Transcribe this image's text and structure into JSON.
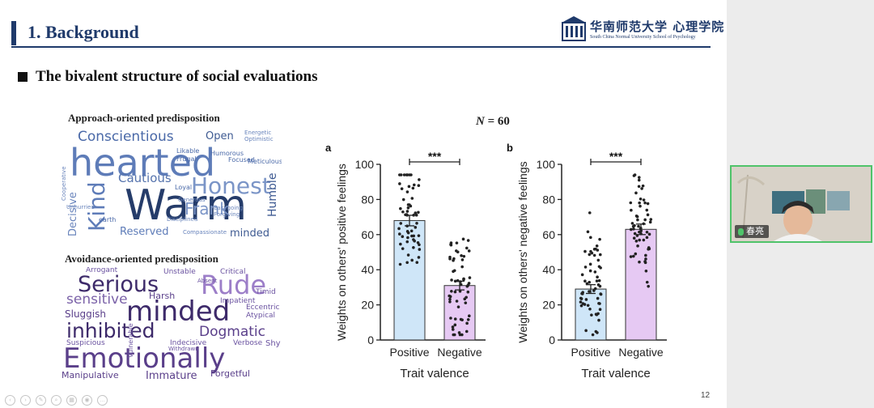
{
  "slide": {
    "section_title": "1. Background",
    "logo_text": "华南师范大学 心理学院",
    "logo_subtitle": "South China Normal University School of Psychology",
    "subtitle": "The bivalent structure of social evaluations",
    "page_number": "12",
    "n_label_prefix": "N",
    "n_label_value": "= 60"
  },
  "approach_cloud": {
    "label": "Approach-oriented predisposition",
    "words": [
      "hearted",
      "Warm",
      "Conscientious",
      "Honest",
      "Kind",
      "Frank",
      "Humble",
      "Decisive",
      "Cautious",
      "Reserved",
      "minded",
      "Open",
      "Energetic",
      "Optimistic",
      "Likable",
      "Frugal",
      "Humorous",
      "Loyal",
      "earth",
      "Meticulous",
      "Focused",
      "Generous",
      "Cooperative",
      "Unhurried",
      "Disciplined",
      "Forgiving",
      "Easygoing",
      "Compassionate"
    ]
  },
  "avoid_cloud": {
    "label": "Avoidance-oriented predisposition",
    "words": [
      "Serious",
      "Rude",
      "minded",
      "sensitive",
      "inhibited",
      "Dogmatic",
      "Emotionally",
      "Arrogant",
      "Unstable",
      "Critical",
      "Sluggish",
      "Harsh",
      "Timid",
      "Eccentric",
      "Atypical",
      "Impatient",
      "Suspicious",
      "Indecisive",
      "Verbose",
      "Shy",
      "Manipulative",
      "Immature",
      "Forgetful",
      "Vulnerable",
      "Absent",
      "Withdrawn"
    ]
  },
  "chart_data": [
    {
      "type": "bar",
      "panel_label": "a",
      "ylabel": "Weights on others' positive feelings",
      "xlabel": "Trait valence",
      "categories": [
        "Positive",
        "Negative"
      ],
      "values": [
        68,
        31
      ],
      "error": [
        3,
        2.5
      ],
      "ylim": [
        0,
        100
      ],
      "yticks": [
        0,
        20,
        40,
        60,
        80,
        100
      ],
      "significance": "***",
      "colors": [
        "#cfe6f8",
        "#e6c9f3"
      ]
    },
    {
      "type": "bar",
      "panel_label": "b",
      "ylabel": "Weights on others' negative feelings",
      "xlabel": "Trait valence",
      "categories": [
        "Positive",
        "Negative"
      ],
      "values": [
        29,
        63
      ],
      "error": [
        2.5,
        3
      ],
      "ylim": [
        0,
        100
      ],
      "yticks": [
        0,
        20,
        40,
        60,
        80,
        100
      ],
      "significance": "***",
      "colors": [
        "#cfe6f8",
        "#e6c9f3"
      ]
    }
  ],
  "webcam": {
    "participant_name": "春亮"
  }
}
